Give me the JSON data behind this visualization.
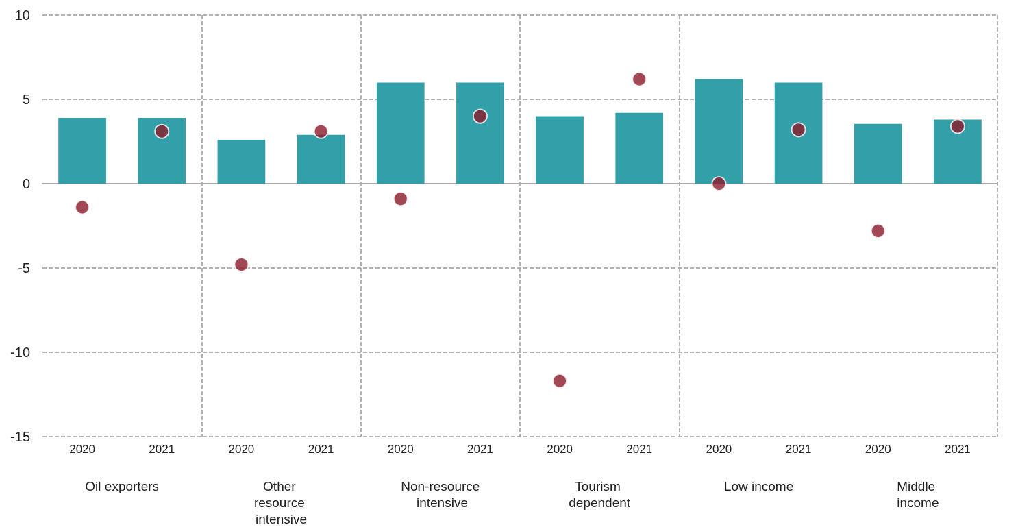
{
  "chart_data": {
    "type": "bar",
    "categories": [
      "2020",
      "2021",
      "2020",
      "2021",
      "2020",
      "2021",
      "2020",
      "2021",
      "2020",
      "2021",
      "2020",
      "2021"
    ],
    "series": [
      {
        "color": "#339fa8",
        "values": [
          3.9,
          3.9,
          2.6,
          2.9,
          6.0,
          6.0,
          4.0,
          4.2,
          6.2,
          6.0,
          3.55,
          3.8
        ]
      },
      {
        "type": "scatter",
        "color": "#8b1a2b",
        "values": [
          -1.4,
          3.1,
          -4.8,
          3.1,
          -0.9,
          4.0,
          -11.7,
          6.2,
          0.0,
          3.2,
          -2.8,
          3.4
        ]
      }
    ],
    "ylim": [
      -15,
      10
    ],
    "yticks": [
      -15,
      -10,
      -5,
      0,
      5,
      10
    ],
    "grid": true,
    "marker": "circle",
    "annotations": [
      "Oil exporters",
      "Other resource intensive",
      "Non-resource intensive",
      "Tourism dependent",
      "Low income",
      "Middle income"
    ]
  }
}
